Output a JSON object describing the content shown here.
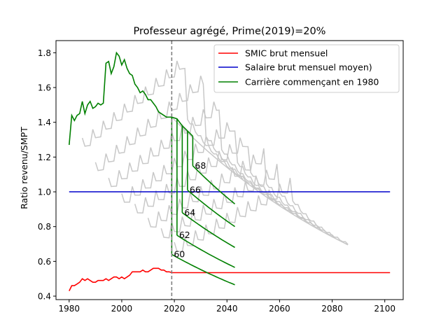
{
  "chart_data": {
    "type": "line",
    "title": "Professeur agrégé, Prime(2019)=20%",
    "xlabel": "",
    "ylabel": "Ratio revenu/SMPT",
    "xlim": [
      1975,
      2107
    ],
    "ylim": [
      0.38,
      1.87
    ],
    "xticks": [
      1980,
      2000,
      2020,
      2040,
      2060,
      2080,
      2100
    ],
    "yticks": [
      0.4,
      0.6,
      0.8,
      1.0,
      1.2,
      1.4,
      1.6,
      1.8
    ],
    "grid": false,
    "legend_position": "top-right",
    "vline": {
      "x": 2019,
      "color": "#808080"
    },
    "colors": {
      "smic": "#ff0000",
      "salaire": "#0000cc",
      "carriere": "#008000",
      "other": "#c8c8c8"
    },
    "series": [
      {
        "name": "SMIC brut mensuel",
        "color": "#ff0000",
        "x": [
          1980,
          1981,
          1982,
          1983,
          1984,
          1985,
          1986,
          1987,
          1988,
          1989,
          1990,
          1991,
          1992,
          1993,
          1994,
          1995,
          1996,
          1997,
          1998,
          1999,
          2000,
          2001,
          2002,
          2003,
          2004,
          2005,
          2006,
          2007,
          2008,
          2009,
          2010,
          2011,
          2012,
          2013,
          2014,
          2015,
          2016,
          2017,
          2018,
          2019,
          2020,
          2030,
          2040,
          2050,
          2060,
          2070,
          2080,
          2090,
          2100,
          2102
        ],
        "y": [
          0.43,
          0.46,
          0.46,
          0.47,
          0.48,
          0.5,
          0.49,
          0.5,
          0.49,
          0.48,
          0.48,
          0.49,
          0.49,
          0.49,
          0.5,
          0.49,
          0.5,
          0.51,
          0.51,
          0.5,
          0.51,
          0.5,
          0.51,
          0.52,
          0.54,
          0.54,
          0.54,
          0.54,
          0.55,
          0.54,
          0.54,
          0.55,
          0.56,
          0.56,
          0.56,
          0.55,
          0.55,
          0.54,
          0.54,
          0.535,
          0.535,
          0.535,
          0.535,
          0.535,
          0.535,
          0.535,
          0.535,
          0.535,
          0.535,
          0.535
        ]
      },
      {
        "name": "Salaire brut mensuel moyen)",
        "color": "#0000cc",
        "x": [
          1980,
          2102
        ],
        "y": [
          1.0,
          1.0
        ]
      },
      {
        "name": "Carrière commençant en 1980",
        "color": "#008000",
        "x": [
          1980,
          1981,
          1982,
          1983,
          1984,
          1985,
          1986,
          1987,
          1988,
          1989,
          1990,
          1991,
          1992,
          1993,
          1994,
          1995,
          1996,
          1997,
          1998,
          1999,
          2000,
          2001,
          2002,
          2003,
          2004,
          2005,
          2006,
          2007,
          2008,
          2009,
          2010,
          2011,
          2012,
          2013,
          2014,
          2015,
          2016,
          2017,
          2018
        ],
        "y": [
          1.27,
          1.44,
          1.41,
          1.44,
          1.45,
          1.52,
          1.45,
          1.5,
          1.52,
          1.48,
          1.49,
          1.51,
          1.5,
          1.51,
          1.74,
          1.75,
          1.68,
          1.72,
          1.8,
          1.78,
          1.73,
          1.76,
          1.71,
          1.68,
          1.67,
          1.62,
          1.6,
          1.57,
          1.58,
          1.56,
          1.53,
          1.53,
          1.51,
          1.49,
          1.46,
          1.45,
          1.44,
          1.43,
          1.43
        ]
      }
    ],
    "retirement_branches": [
      {
        "label": "60",
        "x_ret": 2019,
        "y_top": 1.43,
        "y_start": 0.64,
        "x_end": 2043,
        "y_end": 0.465
      },
      {
        "label": "62",
        "x_ret": 2021,
        "y_top": 1.42,
        "y_start": 0.75,
        "x_end": 2043,
        "y_end": 0.565
      },
      {
        "label": "64",
        "x_ret": 2023,
        "y_top": 1.38,
        "y_start": 0.88,
        "x_end": 2043,
        "y_end": 0.68
      },
      {
        "label": "66",
        "x_ret": 2025,
        "y_top": 1.35,
        "y_start": 1.01,
        "x_end": 2043,
        "y_end": 0.8
      },
      {
        "label": "68",
        "x_ret": 2027,
        "y_top": 1.32,
        "y_start": 1.15,
        "x_end": 2043,
        "y_end": 0.93
      }
    ],
    "decline_curve": {
      "x_start": 2019,
      "y_start": 1.43,
      "x_end": 2086,
      "y_end": 0.695
    },
    "gray_careers": [
      {
        "x0": 1985,
        "y0": 1.26,
        "x1": 2024,
        "y1": 1.74
      },
      {
        "x0": 1990,
        "y0": 1.12,
        "x1": 2031,
        "y1": 1.63
      },
      {
        "x0": 1995,
        "y0": 1.03,
        "x1": 2037,
        "y1": 1.49
      },
      {
        "x0": 2000,
        "y0": 0.94,
        "x1": 2043,
        "y1": 1.38
      },
      {
        "x0": 2005,
        "y0": 0.88,
        "x1": 2048,
        "y1": 1.29
      },
      {
        "x0": 2010,
        "y0": 0.8,
        "x1": 2054,
        "y1": 1.2
      },
      {
        "x0": 2015,
        "y0": 0.74,
        "x1": 2059,
        "y1": 1.11
      },
      {
        "x0": 2020,
        "y0": 0.66,
        "x1": 2064,
        "y1": 1.03
      }
    ]
  }
}
